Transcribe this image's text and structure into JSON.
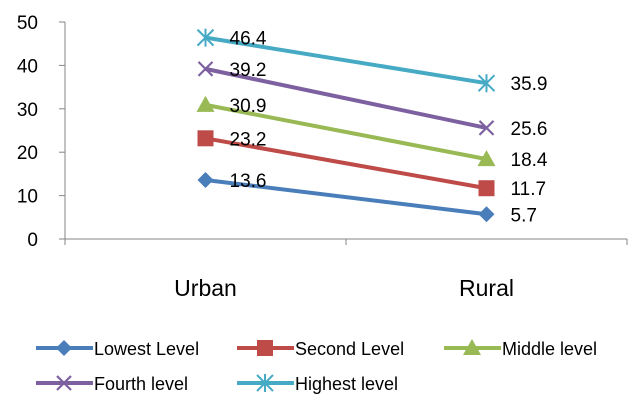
{
  "chart_data": {
    "type": "line",
    "title": "",
    "xlabel": "",
    "ylabel": "",
    "categories": [
      "Urban",
      "Rural"
    ],
    "ylim": [
      0,
      50
    ],
    "yticks": [
      0,
      10,
      20,
      30,
      40,
      50
    ],
    "grid": false,
    "legend_position": "bottom",
    "series": [
      {
        "name": "Lowest Level",
        "values": [
          13.6,
          5.7
        ],
        "labels": [
          "13.6",
          "5.7"
        ],
        "color": "#4A7EBB",
        "marker": "diamond"
      },
      {
        "name": "Second Level",
        "values": [
          23.2,
          11.7
        ],
        "labels": [
          "23.2",
          "11.7"
        ],
        "color": "#BE4B48",
        "marker": "square"
      },
      {
        "name": "Middle level",
        "values": [
          30.9,
          18.4
        ],
        "labels": [
          "30.9",
          "18.4"
        ],
        "color": "#98B954",
        "marker": "triangle"
      },
      {
        "name": "Fourth level",
        "values": [
          39.2,
          25.6
        ],
        "labels": [
          "39.2",
          "25.6"
        ],
        "color": "#7D60A0",
        "marker": "x"
      },
      {
        "name": "Highest level",
        "values": [
          46.4,
          35.9
        ],
        "labels": [
          "46.4",
          "35.9"
        ],
        "color": "#46AAC5",
        "marker": "star"
      }
    ]
  }
}
